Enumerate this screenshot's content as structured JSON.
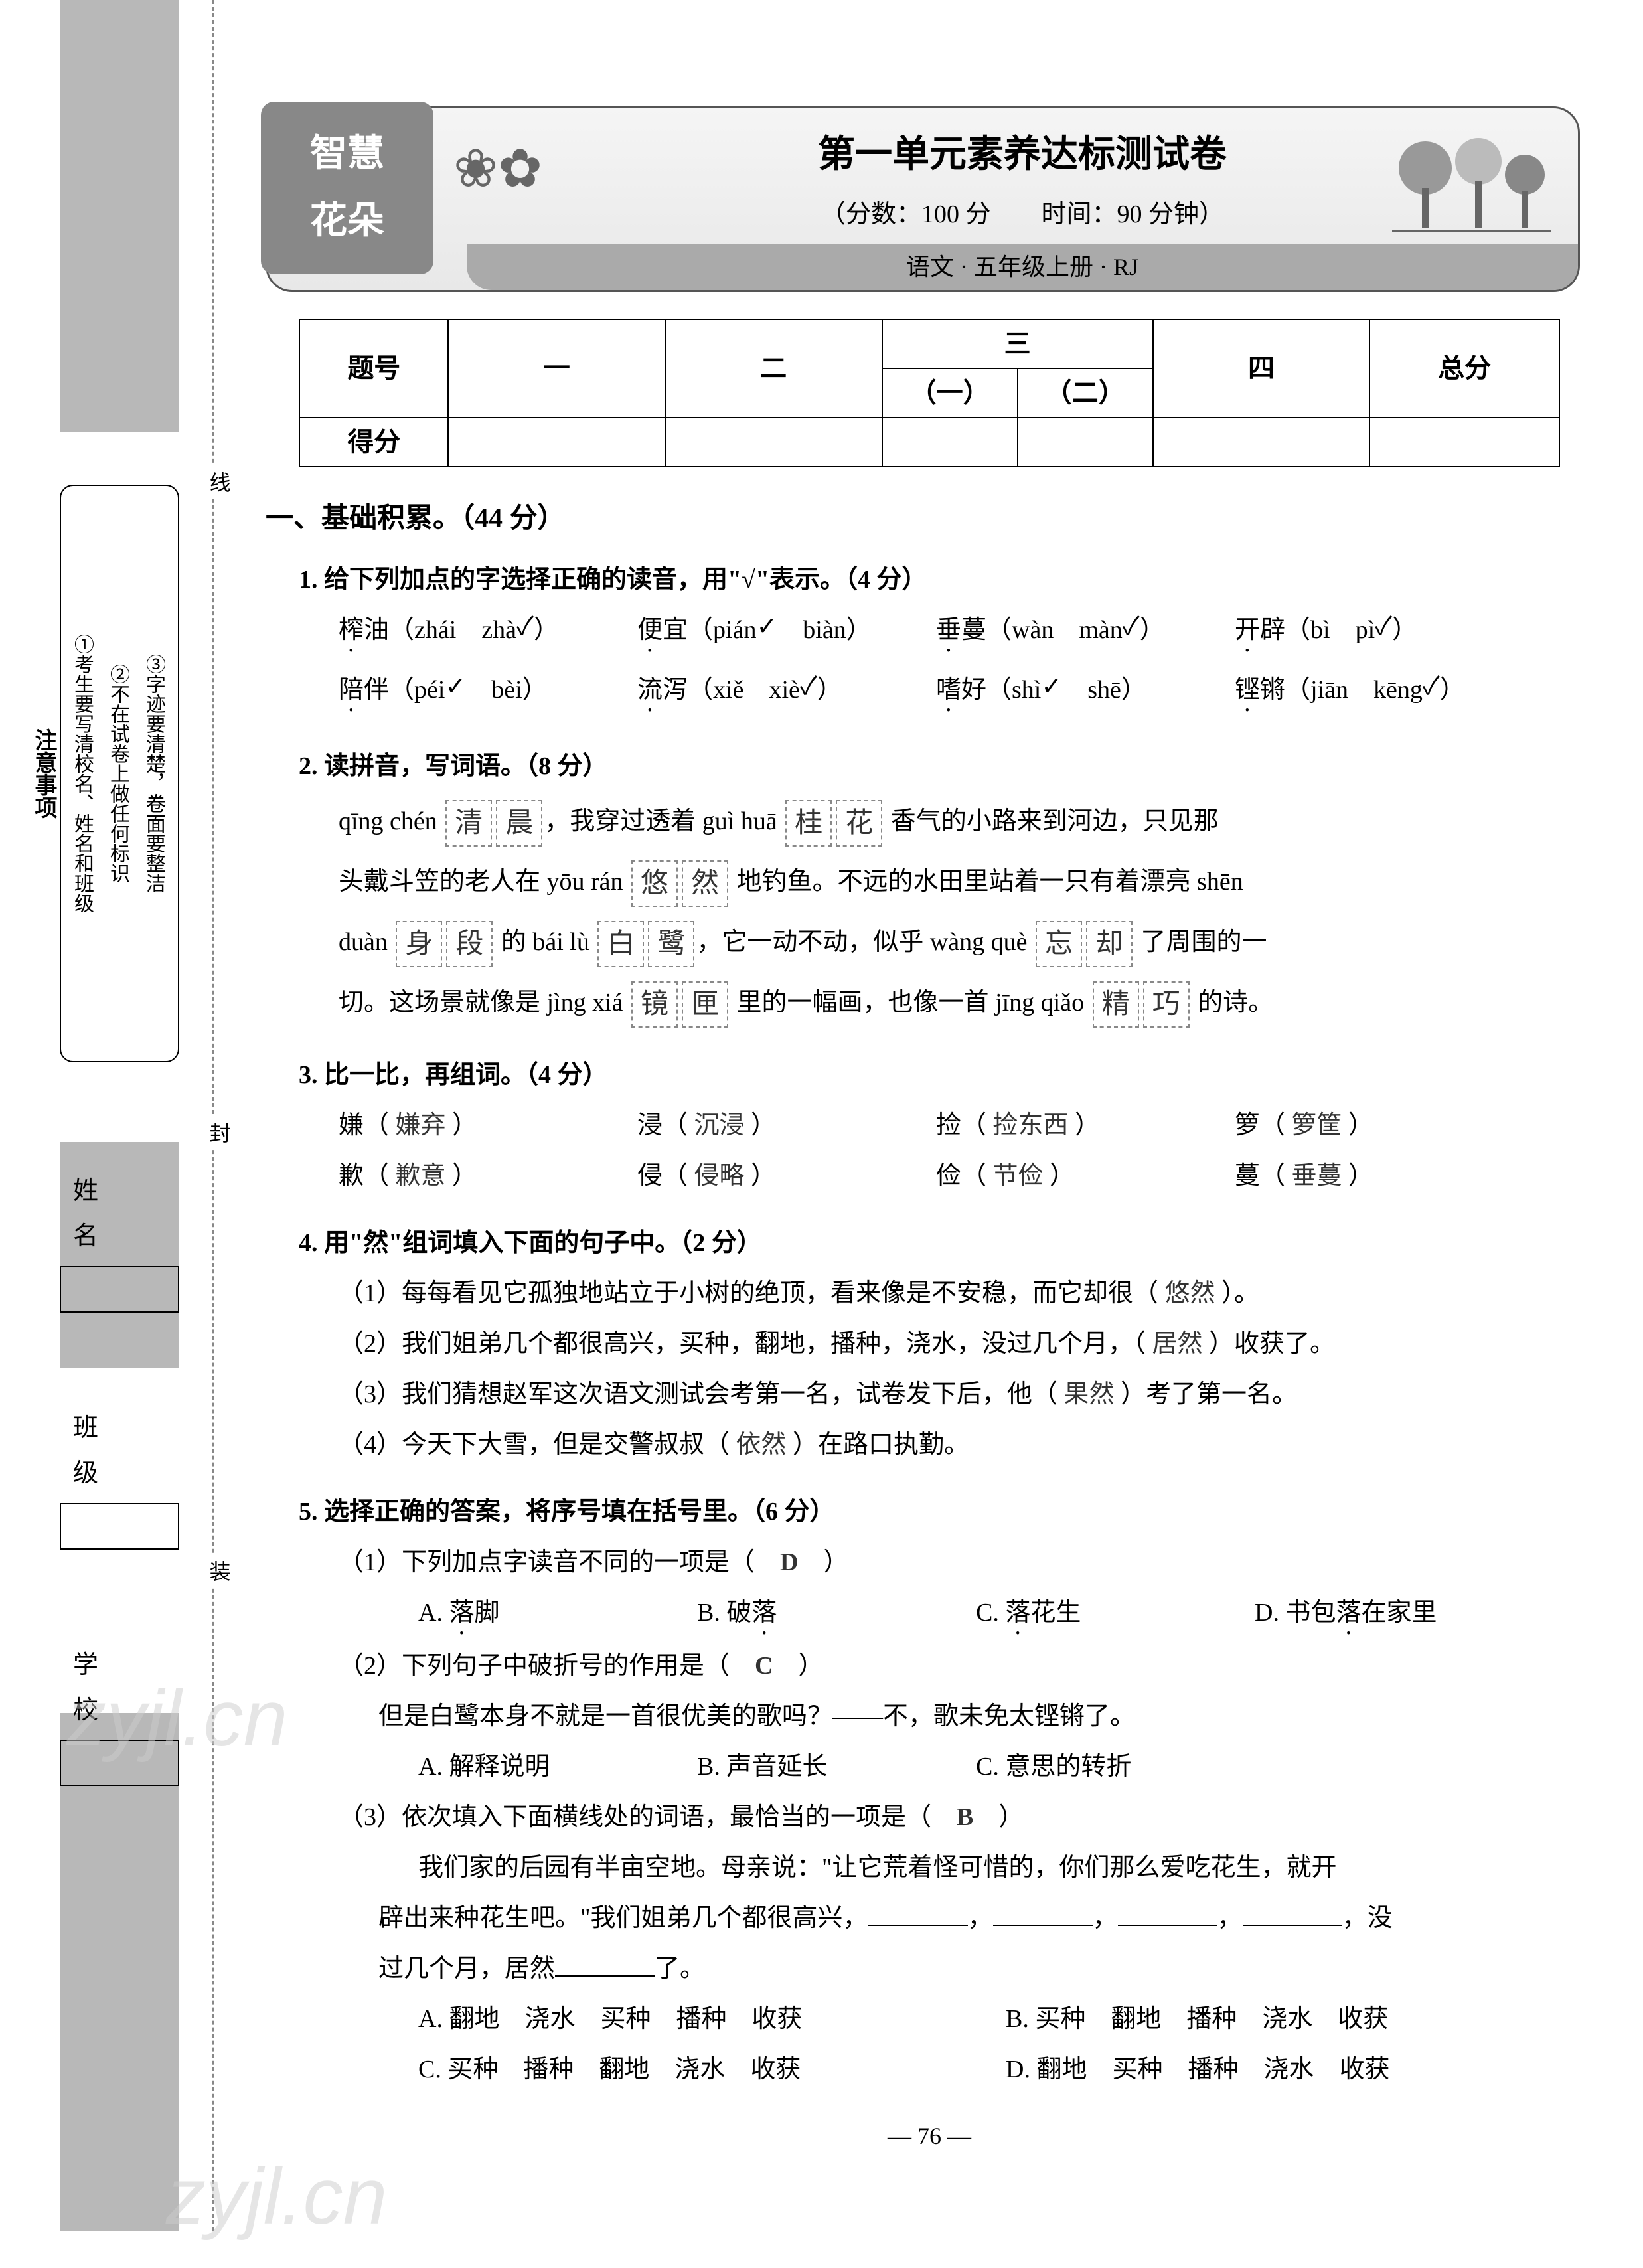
{
  "badge": {
    "line1": "智慧",
    "line2": "花朵"
  },
  "header": {
    "title": "第一单元素养达标测试卷",
    "subtitle": "（分数：100 分　　时间：90 分钟）",
    "footer": "语文 · 五年级上册 · RJ"
  },
  "score_table": {
    "headers": [
      "题号",
      "一",
      "二",
      "三",
      "四",
      "总分"
    ],
    "sub_headers": [
      "（一）",
      "（二）"
    ],
    "row_label": "得分"
  },
  "side_panel": {
    "title": "注意事项",
    "items": [
      "①考生要写清校名、姓名和班级",
      "②不在试卷上做任何标识",
      "③字迹要清楚，卷面要整洁"
    ]
  },
  "cut_labels": {
    "xian": "线",
    "feng": "封",
    "zhuang": "装"
  },
  "info": {
    "name": "姓　名",
    "class": "班　级",
    "school": "学　校"
  },
  "section1": {
    "title": "一、基础积累。（44 分）",
    "q1": {
      "title": "1. 给下列加点的字选择正确的读音，用\"√\"表示。（4 分）",
      "items": [
        {
          "word": "榨油",
          "p1": "zhái",
          "p2": "zhà",
          "correct": 2
        },
        {
          "word": "便宜",
          "p1": "pián",
          "p2": "biàn",
          "correct": 1
        },
        {
          "word": "垂蔓",
          "p1": "wàn",
          "p2": "màn",
          "correct": 2
        },
        {
          "word": "开辟",
          "p1": "bì",
          "p2": "pì",
          "correct": 2
        },
        {
          "word": "陪伴",
          "p1": "péi",
          "p2": "bèi",
          "correct": 1
        },
        {
          "word": "流泻",
          "p1": "xiě",
          "p2": "xiè",
          "correct": 2
        },
        {
          "word": "嗜好",
          "p1": "shì",
          "p2": "shē",
          "correct": 1
        },
        {
          "word": "铿锵",
          "p1": "jiān",
          "p2": "kēng",
          "correct": 2
        }
      ]
    },
    "q2": {
      "title": "2. 读拼音，写词语。（8 分）",
      "text_parts": [
        {
          "pinyin": "qīng chén",
          "chars": [
            "清",
            "晨"
          ],
          "after": "，我穿过透着 "
        },
        {
          "pinyin": "guì huā",
          "chars": [
            "桂",
            "花"
          ],
          "after": " 香气的小路来到河边，只见那"
        },
        {
          "before": "头戴斗笠的老人在 ",
          "pinyin": "yōu rán",
          "chars": [
            "悠",
            "然"
          ],
          "after": " 地钓鱼。不远的水田里站着一只有着漂亮 "
        },
        {
          "pinyin": "shēn",
          "break": true
        },
        {
          "pinyin": "duàn",
          "chars": [
            "身",
            "段"
          ],
          "after": " 的 "
        },
        {
          "pinyin": "bái lù",
          "chars": [
            "白",
            "鹭"
          ],
          "after": "，它一动不动，似乎 "
        },
        {
          "pinyin": "wàng què",
          "chars": [
            "忘",
            "却"
          ],
          "after": " 了周围的一"
        },
        {
          "before": "切。这场景就像是 ",
          "pinyin": "jìng xiá",
          "chars": [
            "镜",
            "匣"
          ],
          "after": " 里的一幅画，也像一首 "
        },
        {
          "pinyin": "jīng qiǎo",
          "chars": [
            "精",
            "巧"
          ],
          "after": " 的诗。"
        }
      ]
    },
    "q3": {
      "title": "3. 比一比，再组词。（4 分）",
      "row1": [
        {
          "char": "嫌",
          "word": "嫌弃"
        },
        {
          "char": "浸",
          "word": "沉浸"
        },
        {
          "char": "捡",
          "word": "捡东西"
        },
        {
          "char": "箩",
          "word": "箩筐"
        }
      ],
      "row2": [
        {
          "char": "歉",
          "word": "歉意"
        },
        {
          "char": "侵",
          "word": "侵略"
        },
        {
          "char": "俭",
          "word": "节俭"
        },
        {
          "char": "蔓",
          "word": "垂蔓"
        }
      ]
    },
    "q4": {
      "title": "4. 用\"然\"组词填入下面的句子中。（2 分）",
      "items": [
        {
          "text": "（1）每每看见它孤独地站立于小树的绝顶，看来像是不安稳，而它却很（",
          "ans": "悠然",
          "after": "）。"
        },
        {
          "text": "（2）我们姐弟几个都很高兴，买种，翻地，播种，浇水，没过几个月，（",
          "ans": "居然",
          "after": "）收获了。"
        },
        {
          "text": "（3）我们猜想赵军这次语文测试会考第一名，试卷发下后，他（",
          "ans": "果然",
          "after": "）考了第一名。"
        },
        {
          "text": "（4）今天下大雪，但是交警叔叔（",
          "ans": "依然",
          "after": "）在路口执勤。"
        }
      ]
    },
    "q5": {
      "title": "5. 选择正确的答案，将序号填在括号里。（6 分）",
      "sub1": {
        "q": "（1）下列加点字读音不同的一项是（",
        "ans": "D",
        "after": "）",
        "choices": [
          {
            "label": "A.",
            "text": "落脚",
            "dot": "落"
          },
          {
            "label": "B.",
            "text": "破落",
            "dot": "落"
          },
          {
            "label": "C.",
            "text": "落花生",
            "dot": "落"
          },
          {
            "label": "D.",
            "text": "书包落在家里",
            "dot": "落"
          }
        ]
      },
      "sub2": {
        "q": "（2）下列句子中破折号的作用是（",
        "ans": "C",
        "after": "）",
        "sentence": "但是白鹭本身不就是一首很优美的歌吗？——不，歌未免太铿锵了。",
        "choices": [
          {
            "label": "A.",
            "text": "解释说明"
          },
          {
            "label": "B.",
            "text": "声音延长"
          },
          {
            "label": "C.",
            "text": "意思的转折"
          }
        ]
      },
      "sub3": {
        "q": "（3）依次填入下面横线处的词语，最恰当的一项是（",
        "ans": "B",
        "after": "）",
        "passage1": "我们家的后园有半亩空地。母亲说：\"让它荒着怪可惜的，你们那么爱吃花生，就开",
        "passage2": "辟出来种花生吧。\"我们姐弟几个都很高兴，",
        "passage3": "，没",
        "passage4": "过几个月，居然",
        "passage5": "了。",
        "choices": [
          {
            "label": "A.",
            "text": "翻地　浇水　买种　播种　收获"
          },
          {
            "label": "B.",
            "text": "买种　翻地　播种　浇水　收获"
          },
          {
            "label": "C.",
            "text": "买种　播种　翻地　浇水　收获"
          },
          {
            "label": "D.",
            "text": "翻地　买种　播种　浇水　收获"
          }
        ]
      }
    }
  },
  "page_num": "76",
  "watermark": "zyjl.cn"
}
